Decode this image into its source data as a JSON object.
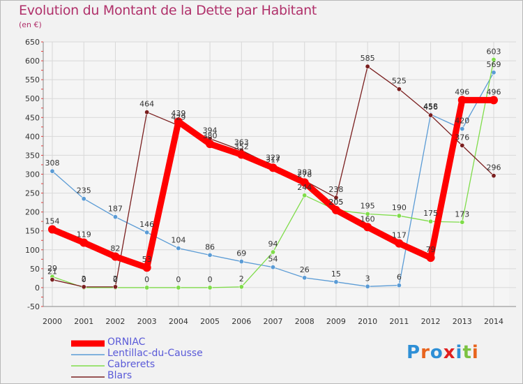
{
  "chart_data": {
    "type": "line",
    "title": "Evolution du Montant de la Dette par Habitant",
    "subtitle": "(en €)",
    "x": [
      "2000",
      "2001",
      "2002",
      "2003",
      "2004",
      "2005",
      "2006",
      "2007",
      "2008",
      "2009",
      "2010",
      "2011",
      "2012",
      "2013",
      "2014"
    ],
    "ylim": [
      -50,
      650
    ],
    "yticks": [
      -50,
      0,
      50,
      100,
      150,
      200,
      250,
      300,
      350,
      400,
      450,
      500,
      550,
      600,
      650
    ],
    "grid": true,
    "legend_position": "bottom-left",
    "series": [
      {
        "name": "ORNIAC",
        "color": "#ff0000",
        "values": [
          154,
          119,
          82,
          53,
          439,
          380,
          352,
          317,
          278,
          205,
          160,
          117,
          79,
          496,
          496
        ]
      },
      {
        "name": "Lentillac-du-Causse",
        "color": "#5a9bd5",
        "values": [
          308,
          235,
          187,
          146,
          104,
          86,
          69,
          54,
          26,
          15,
          3,
          6,
          458,
          420,
          569
        ]
      },
      {
        "name": "Cabrerets",
        "color": "#7fdc4a",
        "values": [
          29,
          0,
          0,
          0,
          0,
          0,
          2,
          94,
          244,
          205,
          195,
          190,
          175,
          173,
          603
        ]
      },
      {
        "name": "Blars",
        "color": "#7a1f1f",
        "values": [
          21,
          2,
          2,
          464,
          429,
          394,
          363,
          322,
          283,
          238,
          585,
          525,
          456,
          376,
          296
        ]
      }
    ],
    "logo_text": "Proxiti"
  }
}
